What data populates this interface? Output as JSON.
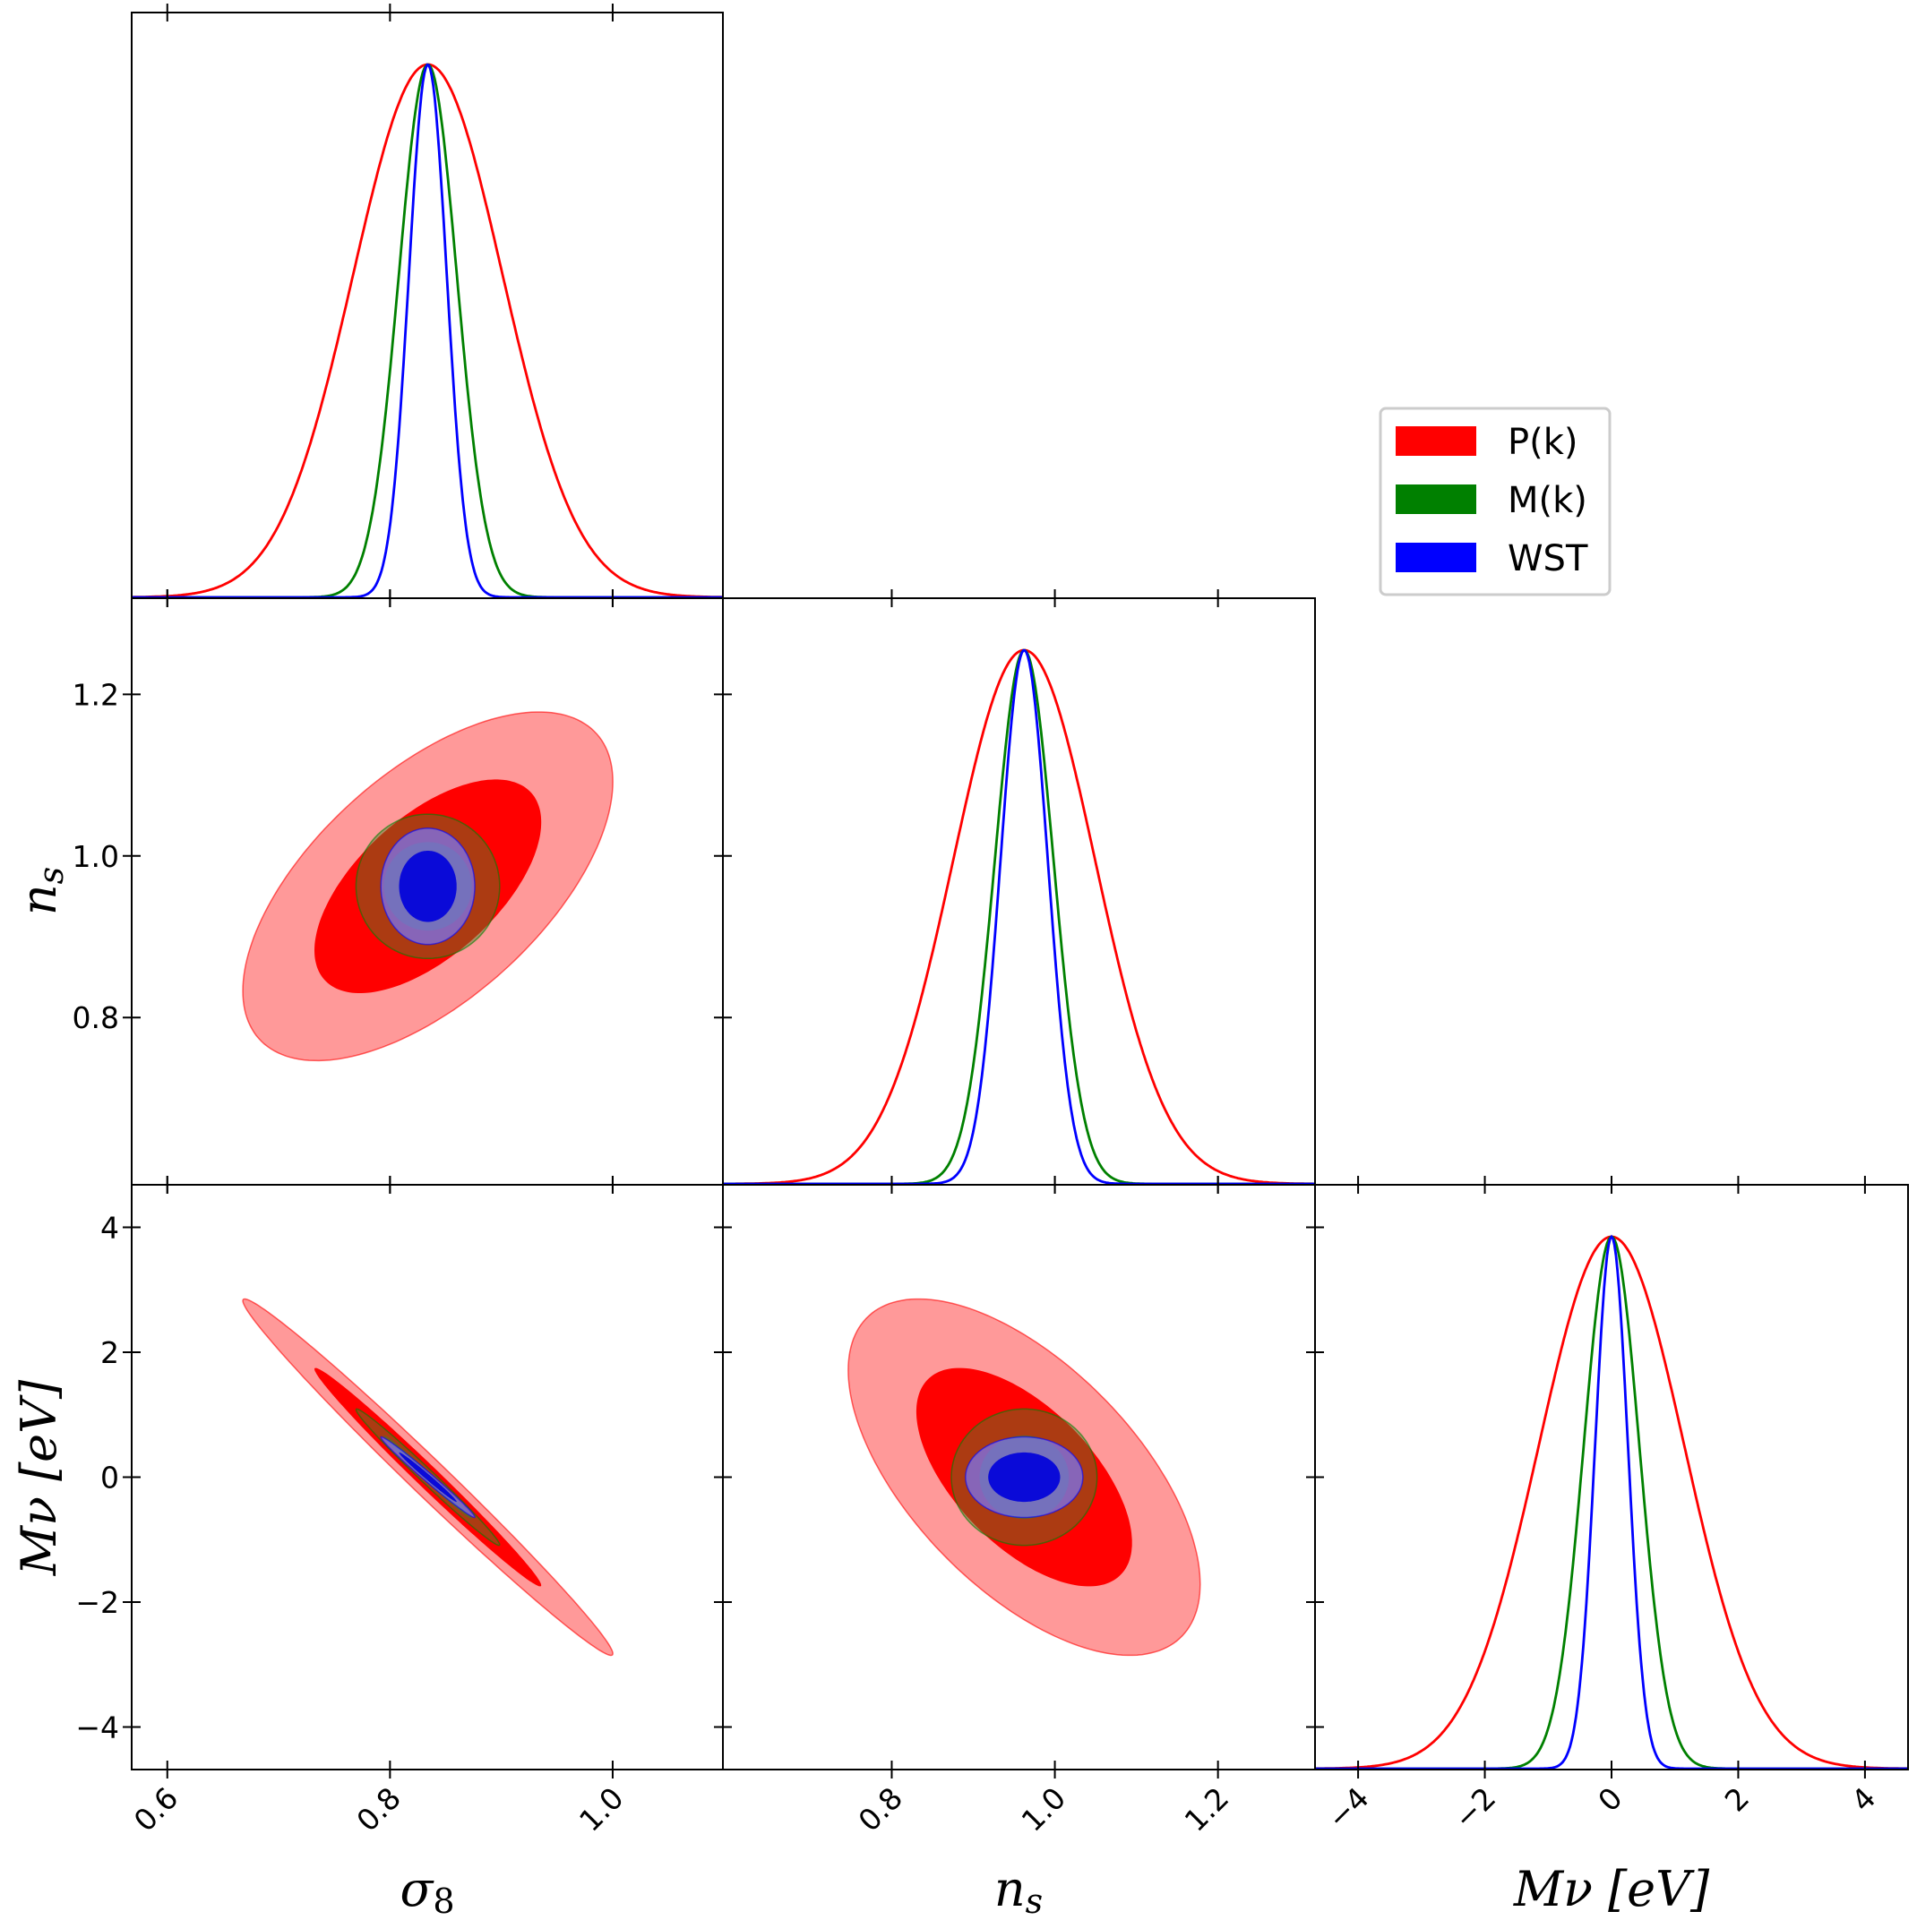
{
  "chart_data": {
    "type": "corner",
    "parameters": [
      {
        "key": "s8",
        "label": "σ8",
        "range": [
          0.568,
          1.099
        ],
        "ticks": [
          "0.6",
          "0.8",
          "1.0"
        ],
        "tick_values": [
          0.6,
          0.8,
          1.0
        ]
      },
      {
        "key": "ns",
        "label": "ns",
        "range": [
          0.593,
          1.319
        ],
        "ticks": [
          "0.8",
          "1.0",
          "1.2"
        ],
        "tick_values": [
          0.8,
          1.0,
          1.2
        ]
      },
      {
        "key": "mnu",
        "label": "Mν [eV]",
        "range": [
          -4.68,
          4.68
        ],
        "ticks": [
          "−4",
          "−2",
          "0",
          "2",
          "4"
        ],
        "tick_values": [
          -4,
          -2,
          0,
          2,
          4
        ]
      }
    ],
    "series": [
      {
        "name": "P(k)",
        "color": "#ff0000",
        "mean": [
          0.834,
          0.9624,
          0.0
        ],
        "sigma": [
          0.067,
          0.087,
          1.15
        ],
        "corr": {
          "s8_ns": 0.6,
          "s8_mnu": -0.99,
          "ns_mnu": -0.6
        }
      },
      {
        "name": "M(k)",
        "color": "#008000",
        "mean": [
          0.834,
          0.9624,
          0.0
        ],
        "sigma": [
          0.026,
          0.036,
          0.44
        ],
        "corr": {
          "s8_ns": 0.0,
          "s8_mnu": -0.99,
          "ns_mnu": 0.0
        }
      },
      {
        "name": "WST",
        "color": "#0000ff",
        "mean": [
          0.834,
          0.9624,
          0.0
        ],
        "sigma": [
          0.017,
          0.029,
          0.26
        ],
        "corr": {
          "s8_ns": 0.0,
          "s8_mnu": -0.99,
          "ns_mnu": 0.0
        }
      }
    ],
    "contour_levels": [
      "68%",
      "95%"
    ],
    "legend": {
      "placement": "upper-right",
      "entries": [
        "P(k)",
        "M(k)",
        "WST"
      ]
    },
    "grid": false
  }
}
